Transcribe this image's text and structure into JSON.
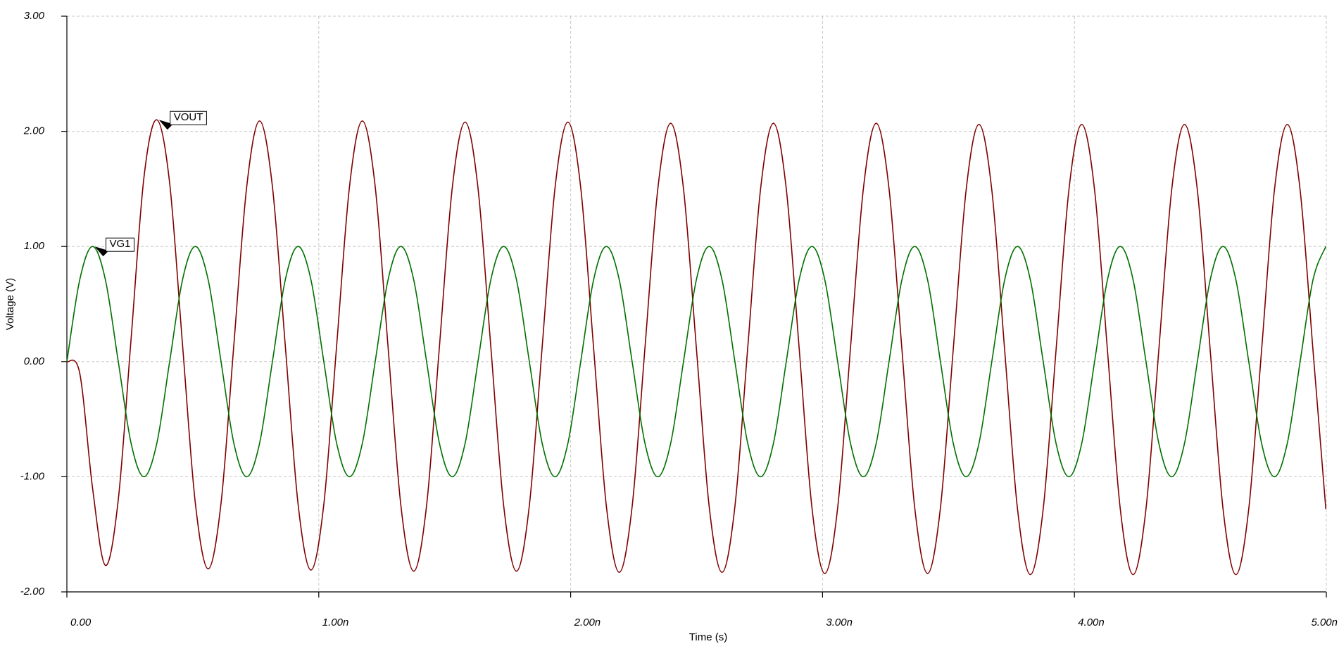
{
  "chart_data": {
    "type": "line",
    "xlabel": "Time (s)",
    "ylabel": "Voltage (V)",
    "x": [
      0,
      0.051,
      0.102,
      0.153,
      0.204,
      0.255,
      0.306,
      0.357,
      0.408,
      0.459,
      0.51,
      0.561,
      0.612,
      0.663,
      0.714,
      0.765,
      0.816,
      0.867,
      0.918,
      0.969,
      1.02,
      1.071,
      1.122,
      1.173,
      1.224,
      1.275,
      1.326,
      1.377,
      1.428,
      1.479,
      1.53,
      1.581,
      1.632,
      1.683,
      1.734,
      1.785,
      1.836,
      1.887,
      1.938,
      1.989,
      2.04,
      2.091,
      2.142,
      2.193,
      2.244,
      2.295,
      2.346,
      2.397,
      2.448,
      2.499,
      2.55,
      2.601,
      2.652,
      2.703,
      2.754,
      2.805,
      2.856,
      2.907,
      2.958,
      3.009,
      3.06,
      3.111,
      3.162,
      3.213,
      3.264,
      3.315,
      3.366,
      3.417,
      3.468,
      3.519,
      3.57,
      3.621,
      3.672,
      3.723,
      3.774,
      3.825,
      3.876,
      3.927,
      3.978,
      4.029,
      4.08,
      4.131,
      4.182,
      4.233,
      4.284,
      4.335,
      4.386,
      4.437,
      4.488,
      4.539,
      4.59,
      4.641,
      4.692,
      4.743,
      4.794,
      4.845,
      4.896,
      4.947,
      4.998
    ],
    "series": [
      {
        "name": "VOUT",
        "color": "#800000",
        "values": [
          0,
          -0.1,
          -1.1,
          -1.77,
          -1.2,
          0.2,
          1.6,
          2.1,
          1.55,
          0.15,
          -1.23,
          -1.8,
          -1.23,
          0.15,
          1.52,
          2.09,
          1.52,
          0.14,
          -1.24,
          -1.81,
          -1.24,
          0.14,
          1.52,
          2.09,
          1.52,
          0.13,
          -1.25,
          -1.82,
          -1.25,
          0.13,
          1.51,
          2.08,
          1.51,
          0.13,
          -1.25,
          -1.82,
          -1.25,
          0.13,
          1.51,
          2.08,
          1.51,
          0.12,
          -1.26,
          -1.83,
          -1.26,
          0.12,
          1.5,
          2.07,
          1.5,
          0.12,
          -1.26,
          -1.83,
          -1.26,
          0.12,
          1.5,
          2.07,
          1.5,
          0.12,
          -1.27,
          -1.84,
          -1.27,
          0.12,
          1.5,
          2.07,
          1.5,
          0.11,
          -1.27,
          -1.84,
          -1.27,
          0.11,
          1.49,
          2.06,
          1.49,
          0.1,
          -1.28,
          -1.85,
          -1.28,
          0.1,
          1.49,
          2.06,
          1.49,
          0.1,
          -1.28,
          -1.85,
          -1.28,
          0.1,
          1.49,
          2.06,
          1.49,
          0.1,
          -1.28,
          -1.85,
          -1.28,
          0.1,
          1.49,
          2.06,
          1.49,
          0.1,
          -1.28
        ]
      },
      {
        "name": "VG1",
        "color": "#007000",
        "values": [
          0,
          0.71,
          1,
          0.71,
          0,
          -0.71,
          -1,
          -0.71,
          0,
          0.71,
          1,
          0.71,
          0,
          -0.71,
          -1,
          -0.71,
          0,
          0.71,
          1,
          0.71,
          0,
          -0.71,
          -1,
          -0.71,
          0,
          0.71,
          1,
          0.71,
          0,
          -0.71,
          -1,
          -0.71,
          0,
          0.71,
          1,
          0.71,
          0,
          -0.71,
          -1,
          -0.71,
          0,
          0.71,
          1,
          0.71,
          0,
          -0.71,
          -1,
          -0.71,
          0,
          0.71,
          1,
          0.71,
          0,
          -0.71,
          -1,
          -0.71,
          0,
          0.71,
          1,
          0.71,
          0,
          -0.71,
          -1,
          -0.71,
          0,
          0.71,
          1,
          0.71,
          0,
          -0.71,
          -1,
          -0.71,
          0,
          0.71,
          1,
          0.71,
          0,
          -0.71,
          -1,
          -0.71,
          0,
          0.71,
          1,
          0.71,
          0,
          -0.71,
          -1,
          -0.71,
          0,
          0.71,
          1,
          0.71,
          0,
          -0.71,
          -1,
          -0.71,
          0,
          0.71,
          1
        ]
      }
    ],
    "xlim": [
      0,
      5
    ],
    "xticks": [
      {
        "value": 0,
        "label": "0.00"
      },
      {
        "value": 1,
        "label": "1.00n"
      },
      {
        "value": 2,
        "label": "2.00n"
      },
      {
        "value": 3,
        "label": "3.00n"
      },
      {
        "value": 4,
        "label": "4.00n"
      },
      {
        "value": 5,
        "label": "5.00n"
      }
    ],
    "ylim": [
      -2,
      3
    ],
    "yticks": [
      {
        "value": -2,
        "label": "-2.00"
      },
      {
        "value": -1,
        "label": "-1.00"
      },
      {
        "value": 0,
        "label": "0.00"
      },
      {
        "value": 1,
        "label": "1.00"
      },
      {
        "value": 2,
        "label": "2.00"
      },
      {
        "value": 3,
        "label": "3.00"
      }
    ],
    "grid": true
  }
}
